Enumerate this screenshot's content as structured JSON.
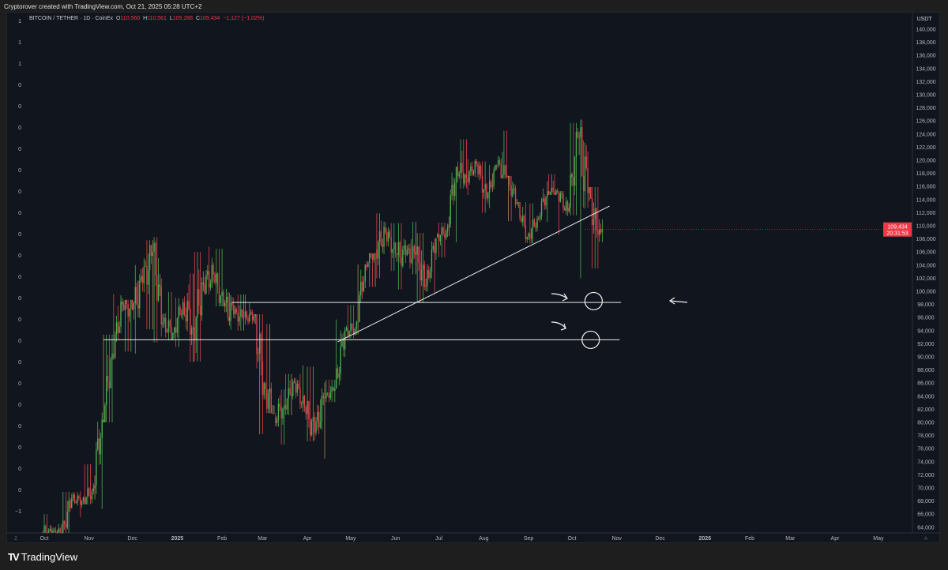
{
  "credit": "Cryptorover created with TradingView.com, Oct 21, 2025 05:28 UTC+2",
  "legend": {
    "symbol": "BITCOIN / TETHER · 1D · CoinEx",
    "o_label": "O",
    "o": "110,560",
    "h_label": "H",
    "h": "110,561",
    "l_label": "L",
    "l": "109,288",
    "c_label": "C",
    "c": "109,434",
    "change": "−1,127 (−1.02%)"
  },
  "footer": {
    "brand": "TradingView",
    "logo_icon": "tradingview-logo-icon"
  },
  "colors": {
    "up": "#26a69a",
    "down": "#f23645",
    "candle_up": "#4caf50",
    "candle_down": "#e0414d",
    "mixed": "#b08c5a",
    "background": "#11151e",
    "last_price_bg": "#f23645"
  },
  "chart_data": {
    "type": "candlestick",
    "title": "BITCOIN / TETHER · 1D · CoinEx",
    "currency": "USDT",
    "ylim": [
      63000,
      141000
    ],
    "y_ticks": [
      140000,
      138000,
      136000,
      134000,
      132000,
      130000,
      128000,
      126000,
      124000,
      122000,
      120000,
      118000,
      116000,
      114000,
      112000,
      110000,
      108000,
      106000,
      104000,
      102000,
      100000,
      98000,
      96000,
      94000,
      92000,
      90000,
      88000,
      86000,
      84000,
      82000,
      80000,
      78000,
      76000,
      74000,
      72000,
      70000,
      68000,
      66000,
      64000
    ],
    "left_axis_labels": [
      "1",
      "1",
      "1",
      "0",
      "0",
      "0",
      "0",
      "0",
      "0",
      "0",
      "0",
      "0",
      "0",
      "0",
      "0",
      "0",
      "0",
      "0",
      "0",
      "0",
      "0",
      "0",
      "0",
      "−1"
    ],
    "x_ticks": [
      "Oct",
      "Nov",
      "Dec",
      "2025",
      "Feb",
      "Mar",
      "Apr",
      "May",
      "Jun",
      "Jul",
      "Aug",
      "Sep",
      "Oct",
      "Nov",
      "Dec",
      "2026",
      "Feb",
      "Mar",
      "Apr",
      "May"
    ],
    "x_tick_dates": [
      "2024-10-01",
      "2024-11-01",
      "2024-12-01",
      "2025-01-01",
      "2025-02-01",
      "2025-03-01",
      "2025-04-01",
      "2025-05-01",
      "2025-06-01",
      "2025-07-01",
      "2025-08-01",
      "2025-09-01",
      "2025-10-01",
      "2025-11-01",
      "2025-12-01",
      "2026-01-01",
      "2026-02-01",
      "2026-03-01",
      "2026-04-01",
      "2026-05-01"
    ],
    "last_price": {
      "value": 109434,
      "label": "109,434",
      "countdown": "20:31:53"
    },
    "candles_weekly": [
      [
        "2024-09-30",
        63300,
        66000,
        60000,
        62800
      ],
      [
        "2024-10-07",
        62800,
        64500,
        58900,
        62900
      ],
      [
        "2024-10-14",
        62900,
        69400,
        62000,
        68400
      ],
      [
        "2024-10-21",
        68400,
        69500,
        65500,
        68000
      ],
      [
        "2024-10-28",
        68000,
        73600,
        67500,
        69500
      ],
      [
        "2024-11-04",
        69500,
        81500,
        66800,
        80400
      ],
      [
        "2024-11-11",
        80400,
        93400,
        80000,
        90500
      ],
      [
        "2024-11-18",
        90500,
        99600,
        89500,
        98000
      ],
      [
        "2024-11-25",
        98000,
        98700,
        90800,
        97200
      ],
      [
        "2024-12-02",
        97200,
        104000,
        90500,
        101200
      ],
      [
        "2024-12-09",
        101200,
        107800,
        94200,
        106000
      ],
      [
        "2024-12-16",
        106000,
        108300,
        92200,
        95200
      ],
      [
        "2024-12-23",
        95200,
        99900,
        92500,
        93700
      ],
      [
        "2024-12-30",
        93700,
        99000,
        91500,
        98300
      ],
      [
        "2025-01-06",
        98300,
        102700,
        89200,
        94500
      ],
      [
        "2025-01-13",
        94500,
        106000,
        89300,
        101100
      ],
      [
        "2025-01-20",
        101100,
        109600,
        99500,
        102600
      ],
      [
        "2025-01-27",
        102600,
        106500,
        97700,
        97700
      ],
      [
        "2025-02-03",
        97700,
        102500,
        91200,
        96500
      ],
      [
        "2025-02-10",
        96500,
        99500,
        94000,
        96100
      ],
      [
        "2025-02-17",
        96100,
        99500,
        94900,
        96200
      ],
      [
        "2025-02-24",
        96200,
        96500,
        78200,
        86000
      ],
      [
        "2025-03-03",
        86000,
        95000,
        81400,
        80700
      ],
      [
        "2025-03-10",
        80700,
        85000,
        76600,
        82600
      ],
      [
        "2025-03-17",
        82600,
        87400,
        81100,
        86100
      ],
      [
        "2025-03-24",
        86100,
        88700,
        81600,
        82300
      ],
      [
        "2025-03-31",
        82300,
        88500,
        77100,
        78400
      ],
      [
        "2025-04-07",
        78400,
        86100,
        74500,
        83700
      ],
      [
        "2025-04-14",
        83700,
        86500,
        83100,
        85200
      ],
      [
        "2025-04-21",
        85200,
        95700,
        85100,
        94000
      ],
      [
        "2025-04-28",
        94000,
        97900,
        92800,
        94300
      ],
      [
        "2025-05-05",
        94300,
        104100,
        93400,
        104100
      ],
      [
        "2025-05-12",
        104100,
        105800,
        100700,
        106400
      ],
      [
        "2025-05-19",
        106400,
        111900,
        102000,
        109000
      ],
      [
        "2025-05-26",
        109000,
        110400,
        103100,
        105700
      ],
      [
        "2025-06-02",
        105700,
        110400,
        100300,
        105500
      ],
      [
        "2025-06-09",
        105500,
        110600,
        102600,
        105600
      ],
      [
        "2025-06-16",
        105600,
        108900,
        98200,
        100900
      ],
      [
        "2025-06-23",
        100900,
        108100,
        99600,
        108300
      ],
      [
        "2025-06-30",
        108300,
        110500,
        105200,
        109200
      ],
      [
        "2025-07-07",
        109200,
        119000,
        107500,
        119000
      ],
      [
        "2025-07-14",
        119000,
        123200,
        115700,
        117300
      ],
      [
        "2025-07-21",
        117300,
        120200,
        114700,
        119400
      ],
      [
        "2025-07-28",
        119400,
        119800,
        112000,
        114200
      ],
      [
        "2025-08-04",
        114200,
        119300,
        112700,
        119300
      ],
      [
        "2025-08-11",
        119300,
        124500,
        117200,
        117400
      ],
      [
        "2025-08-18",
        117400,
        117600,
        110700,
        113500
      ],
      [
        "2025-08-25",
        113500,
        113600,
        107400,
        108300
      ],
      [
        "2025-09-01",
        108300,
        113400,
        107300,
        111100
      ],
      [
        "2025-09-08",
        111100,
        116800,
        110600,
        115300
      ],
      [
        "2025-09-15",
        115300,
        117900,
        114700,
        115200
      ],
      [
        "2025-09-22",
        115200,
        115300,
        108600,
        112200
      ],
      [
        "2025-09-29",
        112200,
        125700,
        111600,
        123500
      ],
      [
        "2025-10-06",
        123500,
        126200,
        102000,
        115000
      ],
      [
        "2025-10-13",
        115000,
        115900,
        103500,
        108600
      ],
      [
        "2025-10-20",
        108600,
        111000,
        107500,
        109434
      ]
    ],
    "drawings": {
      "horizontal_lines": [
        {
          "price": 98300,
          "from": "2025-02-08",
          "to": "2025-11-04"
        },
        {
          "price": 92600,
          "from": "2024-11-11",
          "to": "2025-11-03"
        }
      ],
      "trendline": {
        "from": [
          "2025-04-22",
          92300
        ],
        "to": [
          "2025-10-27",
          113000
        ]
      },
      "circles": [
        {
          "date": "2025-10-16",
          "price": 98500
        },
        {
          "date": "2025-10-14",
          "price": 92600
        }
      ]
    }
  }
}
